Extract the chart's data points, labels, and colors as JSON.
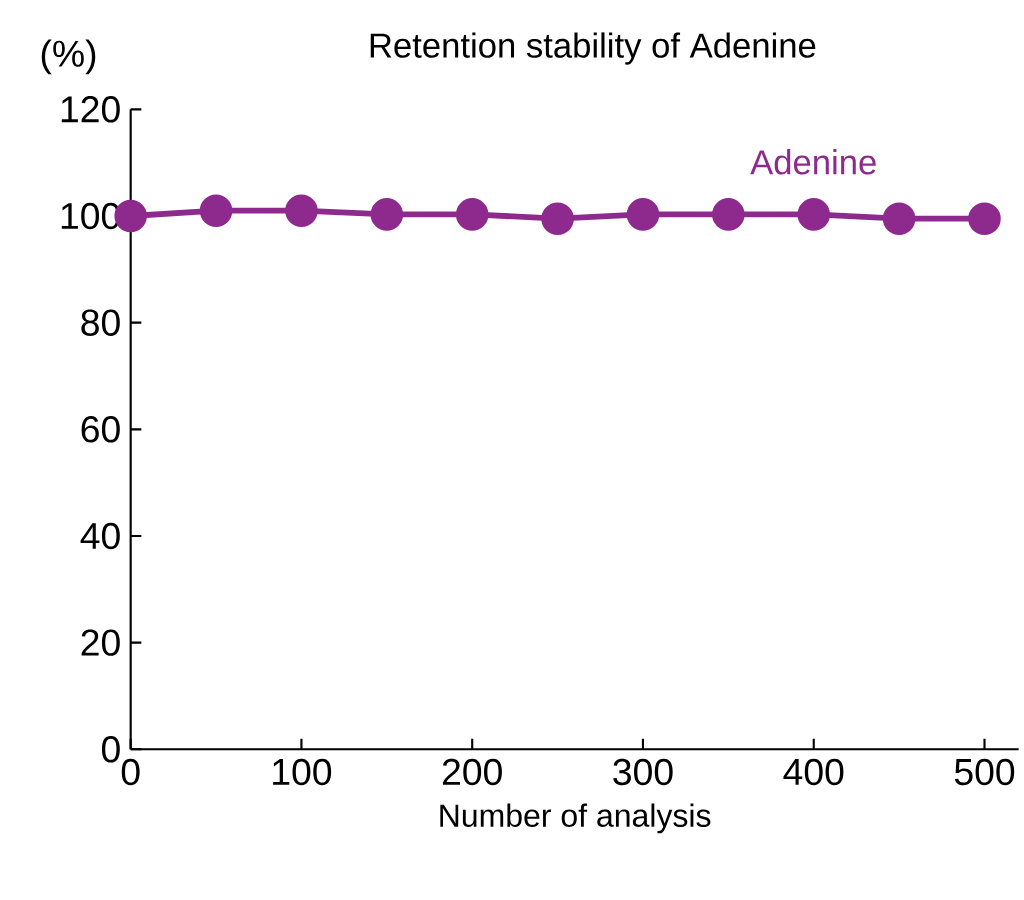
{
  "chart_data": {
    "type": "line",
    "title": "Retention stability of Adenine",
    "xlabel": "Number of analysis",
    "ylabel": "(%)",
    "x": [
      0,
      50,
      100,
      150,
      200,
      250,
      300,
      350,
      400,
      450,
      500
    ],
    "series": [
      {
        "name": "Adenine",
        "color": "#8e2a8e",
        "values": [
          100,
          101,
          101,
          100.3,
          100.3,
          99.5,
          100.3,
          100.3,
          100.3,
          99.5,
          99.5
        ]
      }
    ],
    "xlim": [
      0,
      520
    ],
    "ylim": [
      0,
      120
    ],
    "xticks": [
      0,
      100,
      200,
      300,
      400,
      500
    ],
    "yticks": [
      0,
      20,
      40,
      60,
      80,
      100,
      120
    ],
    "grid": false,
    "legend": false,
    "marker": "circle",
    "line_style": "solid"
  }
}
